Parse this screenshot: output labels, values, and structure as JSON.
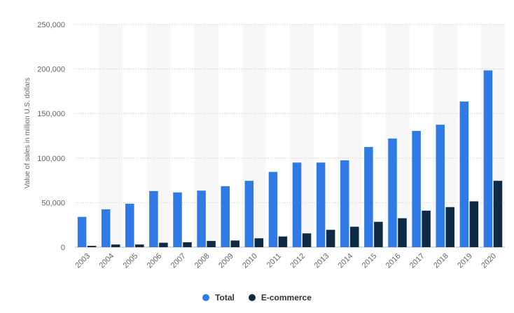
{
  "chart_data": {
    "type": "bar",
    "ylabel": "Value of sales in million U.S. dollars",
    "ylim": [
      0,
      250000
    ],
    "y_ticks": [
      "0",
      "50,000",
      "100,000",
      "150,000",
      "200,000",
      "250,000"
    ],
    "categories": [
      "2003",
      "2004",
      "2005",
      "2006",
      "2007",
      "2008",
      "2009",
      "2010",
      "2011",
      "2012",
      "2013",
      "2014",
      "2015",
      "2016",
      "2017",
      "2018",
      "2019",
      "2020"
    ],
    "series": [
      {
        "name": "Total",
        "color": "#2f7ae5",
        "values": [
          34000,
          42500,
          48800,
          63000,
          61500,
          63500,
          68500,
          74500,
          84500,
          95000,
          95000,
          97500,
          112500,
          122000,
          130500,
          137500,
          163500,
          198500
        ]
      },
      {
        "name": "E-commerce",
        "color": "#0f2a44",
        "values": [
          1500,
          3000,
          3000,
          5000,
          5500,
          7000,
          7500,
          10000,
          12000,
          15500,
          19500,
          23000,
          28500,
          32500,
          41000,
          45000,
          51500,
          74500
        ]
      }
    ],
    "grid": true,
    "legend_position": "bottom-center"
  }
}
